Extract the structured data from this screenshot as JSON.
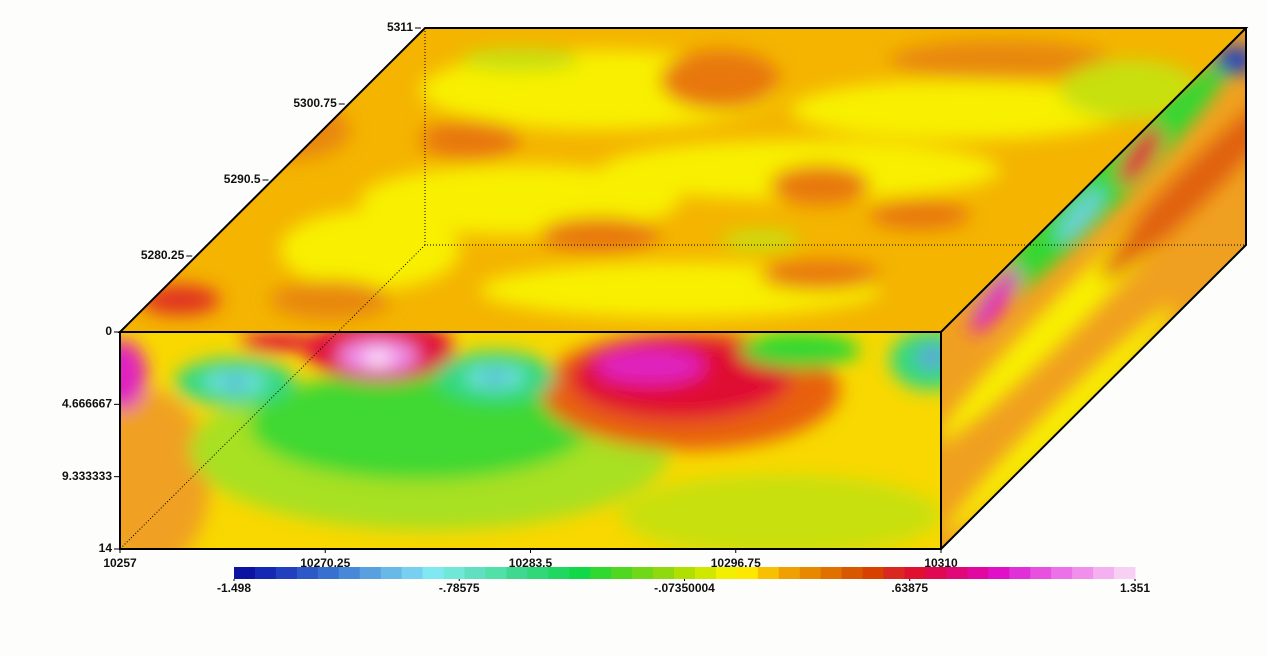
{
  "chart_data": {
    "type": "contour3d",
    "xlim": [
      10257,
      10310
    ],
    "xticks": [
      10257,
      10270.25,
      10283.5,
      10296.75,
      10310
    ],
    "ylim": [
      5270,
      5311
    ],
    "yticks": [
      5280.25,
      5290.5,
      5300.75,
      5311
    ],
    "zlim": [
      0,
      14
    ],
    "zticks": [
      0,
      4.666667,
      9.333333,
      14
    ],
    "colorbar": {
      "lim": [
        -1.498,
        1.351
      ],
      "ticks": [
        -1.498,
        {
          "value": -0.78575,
          "label": "-.78575"
        },
        {
          "value": -0.07350004,
          "label": "-.07350004"
        },
        {
          "value": 0.63875,
          "label": ".63875"
        },
        1.351
      ],
      "colors": [
        "#0a14a0",
        "#1428b4",
        "#2040c0",
        "#2c58c8",
        "#3870d0",
        "#4888d8",
        "#58a0e0",
        "#68b8e8",
        "#78d0f0",
        "#80e8f0",
        "#70e8d8",
        "#60e0c0",
        "#50e0a8",
        "#40d890",
        "#30d878",
        "#20d860",
        "#10d848",
        "#30d830",
        "#50d820",
        "#70d818",
        "#90d810",
        "#b0e000",
        "#d0e800",
        "#f0f000",
        "#ffe800",
        "#f8c000",
        "#f0a000",
        "#e88800",
        "#e07000",
        "#d85800",
        "#d84000",
        "#d82820",
        "#e01030",
        "#e00850",
        "#e00878",
        "#e008a0",
        "#e010c8",
        "#e030d8",
        "#e850e0",
        "#ec70e8",
        "#f090ec",
        "#f4b0f0",
        "#f8d0f4"
      ]
    }
  }
}
